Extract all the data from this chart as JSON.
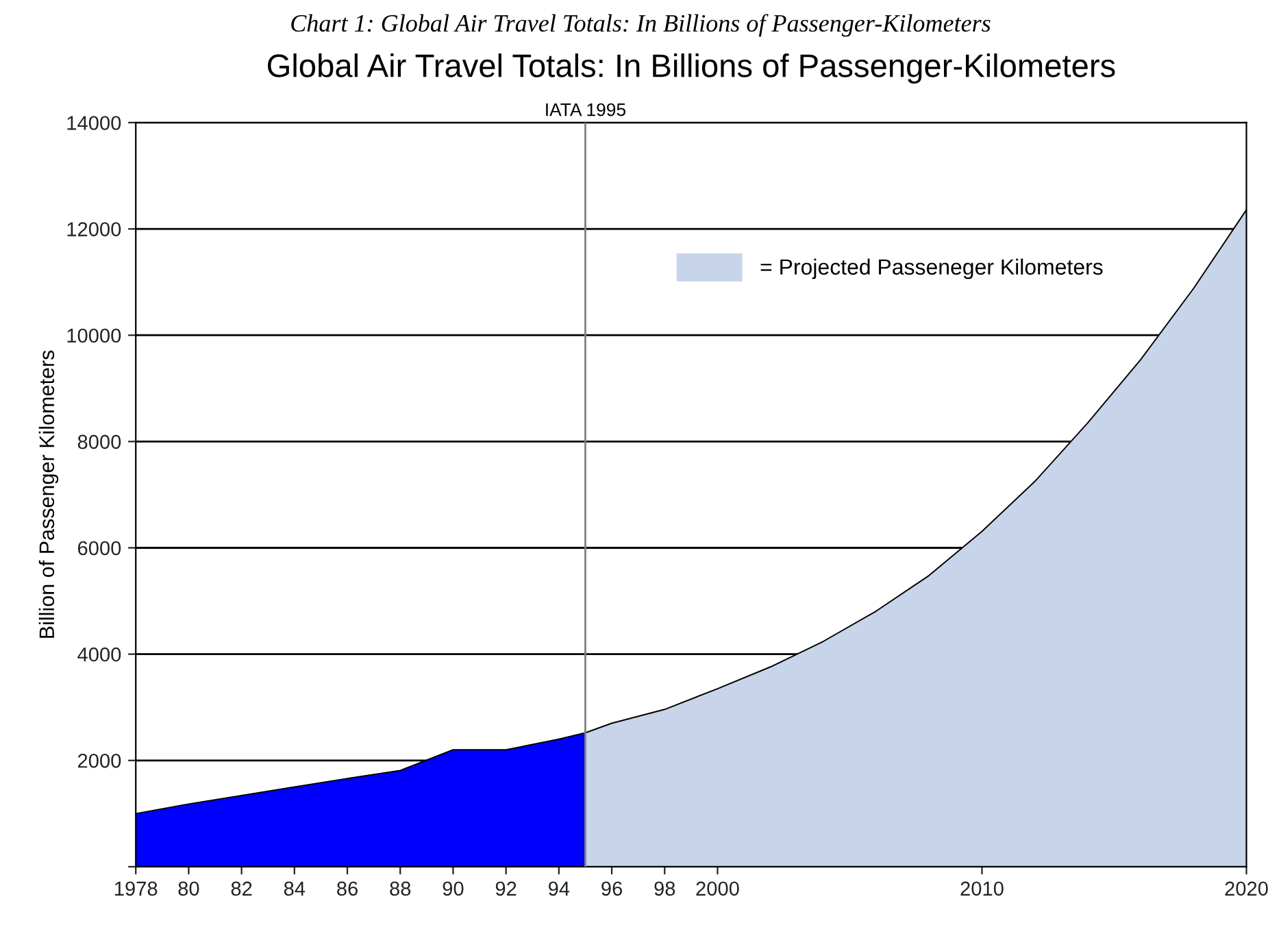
{
  "chart_data": {
    "type": "area",
    "title": "Global Air Travel Totals: In Billions of Passenger-Kilometers",
    "ylabel": "Billion of Passenger Kilometers",
    "annotations": [
      "Chart 1: Global Air Travel Totals: In Billions of Passenger-Kilometers"
    ],
    "series": [
      {
        "color": "#0000ff",
        "x": [
          1978,
          1980,
          1982,
          1984,
          1986,
          1988,
          1990,
          1992,
          1994,
          1995
        ],
        "values": [
          1000,
          1180,
          1340,
          1500,
          1660,
          1810,
          2200,
          2200,
          2400,
          2520
        ]
      },
      {
        "name": "= Projected Passeneger Kilometers",
        "color": "#c8d4e9",
        "x": [
          1995,
          1996,
          1998,
          2000,
          2002,
          2004,
          2006,
          2008,
          2010,
          2012,
          2014,
          2016,
          2018,
          2020
        ],
        "values": [
          2520,
          2700,
          2960,
          3350,
          3760,
          4240,
          4810,
          5480,
          6310,
          7250,
          8350,
          9540,
          10880,
          12360
        ]
      }
    ],
    "xlim": [
      1978,
      2020
    ],
    "xticks": [
      1978,
      {
        "value": 1980,
        "label": "80"
      },
      {
        "value": 1982,
        "label": "82"
      },
      {
        "value": 1984,
        "label": "84"
      },
      {
        "value": 1986,
        "label": "86"
      },
      {
        "value": 1988,
        "label": "88"
      },
      {
        "value": 1990,
        "label": "90"
      },
      {
        "value": 1992,
        "label": "92"
      },
      {
        "value": 1994,
        "label": "94"
      },
      {
        "value": 1996,
        "label": "96"
      },
      {
        "value": 1998,
        "label": "98"
      },
      2000,
      2010,
      2020
    ],
    "ylim": [
      0,
      14000
    ],
    "yticks": [
      {
        "value": 0,
        "label": null
      },
      2000,
      4000,
      6000,
      8000,
      10000,
      12000,
      14000
    ],
    "ref_lines": [
      {
        "axis": "x",
        "value": 1995,
        "label": "IATA 1995",
        "color": "#808080"
      }
    ],
    "grid": "y",
    "legend": "top right"
  }
}
